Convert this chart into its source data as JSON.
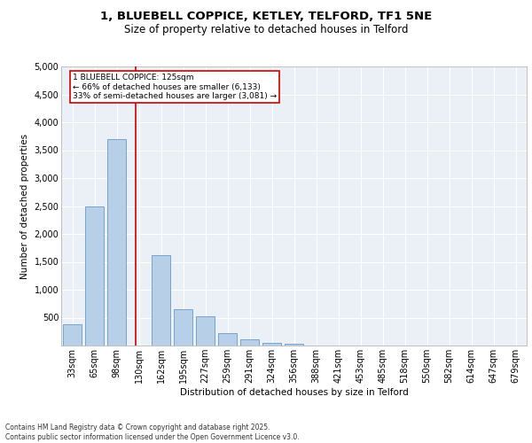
{
  "title1": "1, BLUEBELL COPPICE, KETLEY, TELFORD, TF1 5NE",
  "title2": "Size of property relative to detached houses in Telford",
  "xlabel": "Distribution of detached houses by size in Telford",
  "ylabel": "Number of detached properties",
  "categories": [
    "33sqm",
    "65sqm",
    "98sqm",
    "130sqm",
    "162sqm",
    "195sqm",
    "227sqm",
    "259sqm",
    "291sqm",
    "324sqm",
    "356sqm",
    "388sqm",
    "421sqm",
    "453sqm",
    "485sqm",
    "518sqm",
    "550sqm",
    "582sqm",
    "614sqm",
    "647sqm",
    "679sqm"
  ],
  "values": [
    380,
    2500,
    3700,
    0,
    1620,
    650,
    530,
    220,
    110,
    50,
    30,
    0,
    0,
    0,
    0,
    0,
    0,
    0,
    0,
    0,
    0
  ],
  "bar_color": "#b8cfe8",
  "bar_edgecolor": "#6699cc",
  "vline_x": 2.85,
  "vline_color": "#cc0000",
  "annotation_text": "1 BLUEBELL COPPICE: 125sqm\n← 66% of detached houses are smaller (6,133)\n33% of semi-detached houses are larger (3,081) →",
  "annotation_box_color": "#cc0000",
  "ylim": [
    0,
    5000
  ],
  "yticks": [
    0,
    500,
    1000,
    1500,
    2000,
    2500,
    3000,
    3500,
    4000,
    4500,
    5000
  ],
  "background_color": "#eaf0f6",
  "grid_color": "#ffffff",
  "footer": "Contains HM Land Registry data © Crown copyright and database right 2025.\nContains public sector information licensed under the Open Government Licence v3.0.",
  "title_fontsize": 9.5,
  "subtitle_fontsize": 8.5,
  "axis_label_fontsize": 7.5,
  "tick_fontsize": 7,
  "annot_fontsize": 6.5,
  "footer_fontsize": 5.5
}
